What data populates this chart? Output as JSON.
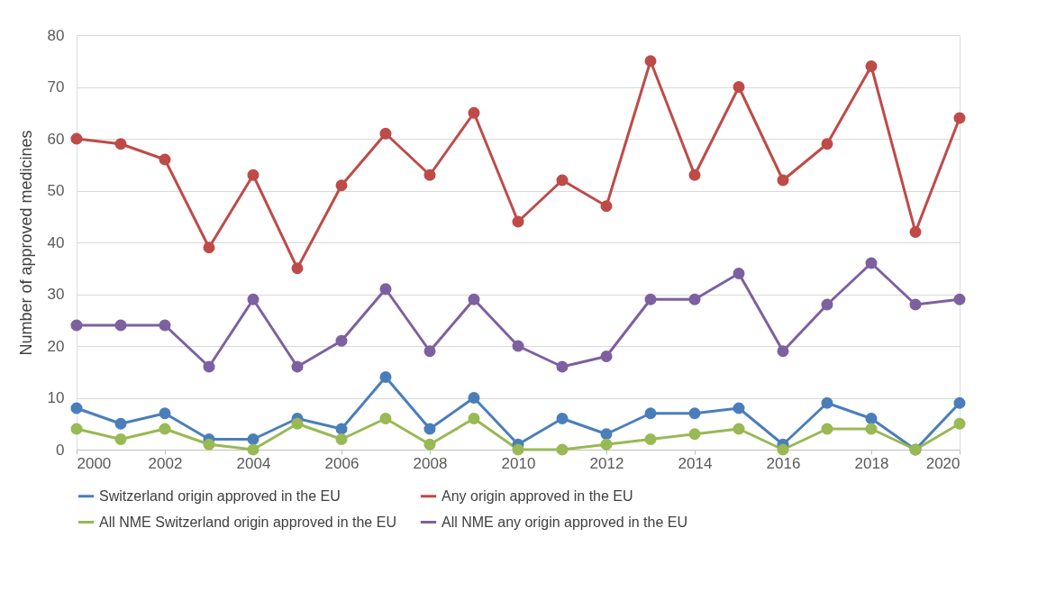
{
  "chart_data": {
    "type": "line",
    "ylabel": "Number of approved medicines",
    "x": [
      2000,
      2001,
      2002,
      2003,
      2004,
      2005,
      2006,
      2007,
      2008,
      2009,
      2010,
      2011,
      2012,
      2013,
      2014,
      2015,
      2016,
      2017,
      2018,
      2019,
      2020
    ],
    "series": [
      {
        "name": "Switzerland origin approved in the EU",
        "color": "#4a7ebb",
        "values": [
          8,
          5,
          7,
          2,
          2,
          6,
          4,
          14,
          4,
          10,
          1,
          6,
          3,
          7,
          7,
          8,
          1,
          9,
          6,
          0,
          9
        ]
      },
      {
        "name": "Any origin approved in the EU",
        "color": "#be4b48",
        "values": [
          60,
          59,
          56,
          39,
          53,
          35,
          51,
          61,
          53,
          65,
          44,
          52,
          47,
          75,
          53,
          70,
          52,
          59,
          74,
          42,
          64
        ]
      },
      {
        "name": "All NME Switzerland origin approved in the EU",
        "color": "#98b954",
        "values": [
          4,
          2,
          4,
          1,
          0,
          5,
          2,
          6,
          1,
          6,
          0,
          0,
          1,
          2,
          3,
          4,
          0,
          4,
          4,
          0,
          5
        ]
      },
      {
        "name": "All NME any origin approved in the EU",
        "color": "#7d60a0",
        "values": [
          24,
          24,
          24,
          16,
          29,
          16,
          21,
          31,
          19,
          29,
          20,
          16,
          18,
          29,
          29,
          34,
          19,
          28,
          36,
          28,
          29
        ]
      }
    ],
    "xlim": [
      2000,
      2020
    ],
    "xticks": [
      2000,
      2002,
      2004,
      2006,
      2008,
      2010,
      2012,
      2014,
      2016,
      2018,
      2020
    ],
    "ylim": [
      0,
      80
    ],
    "yticks": [
      0,
      10,
      20,
      30,
      40,
      50,
      60,
      70,
      80
    ],
    "grid": "y",
    "legend": "bottom",
    "marker": "circle",
    "line_style": "solid"
  }
}
